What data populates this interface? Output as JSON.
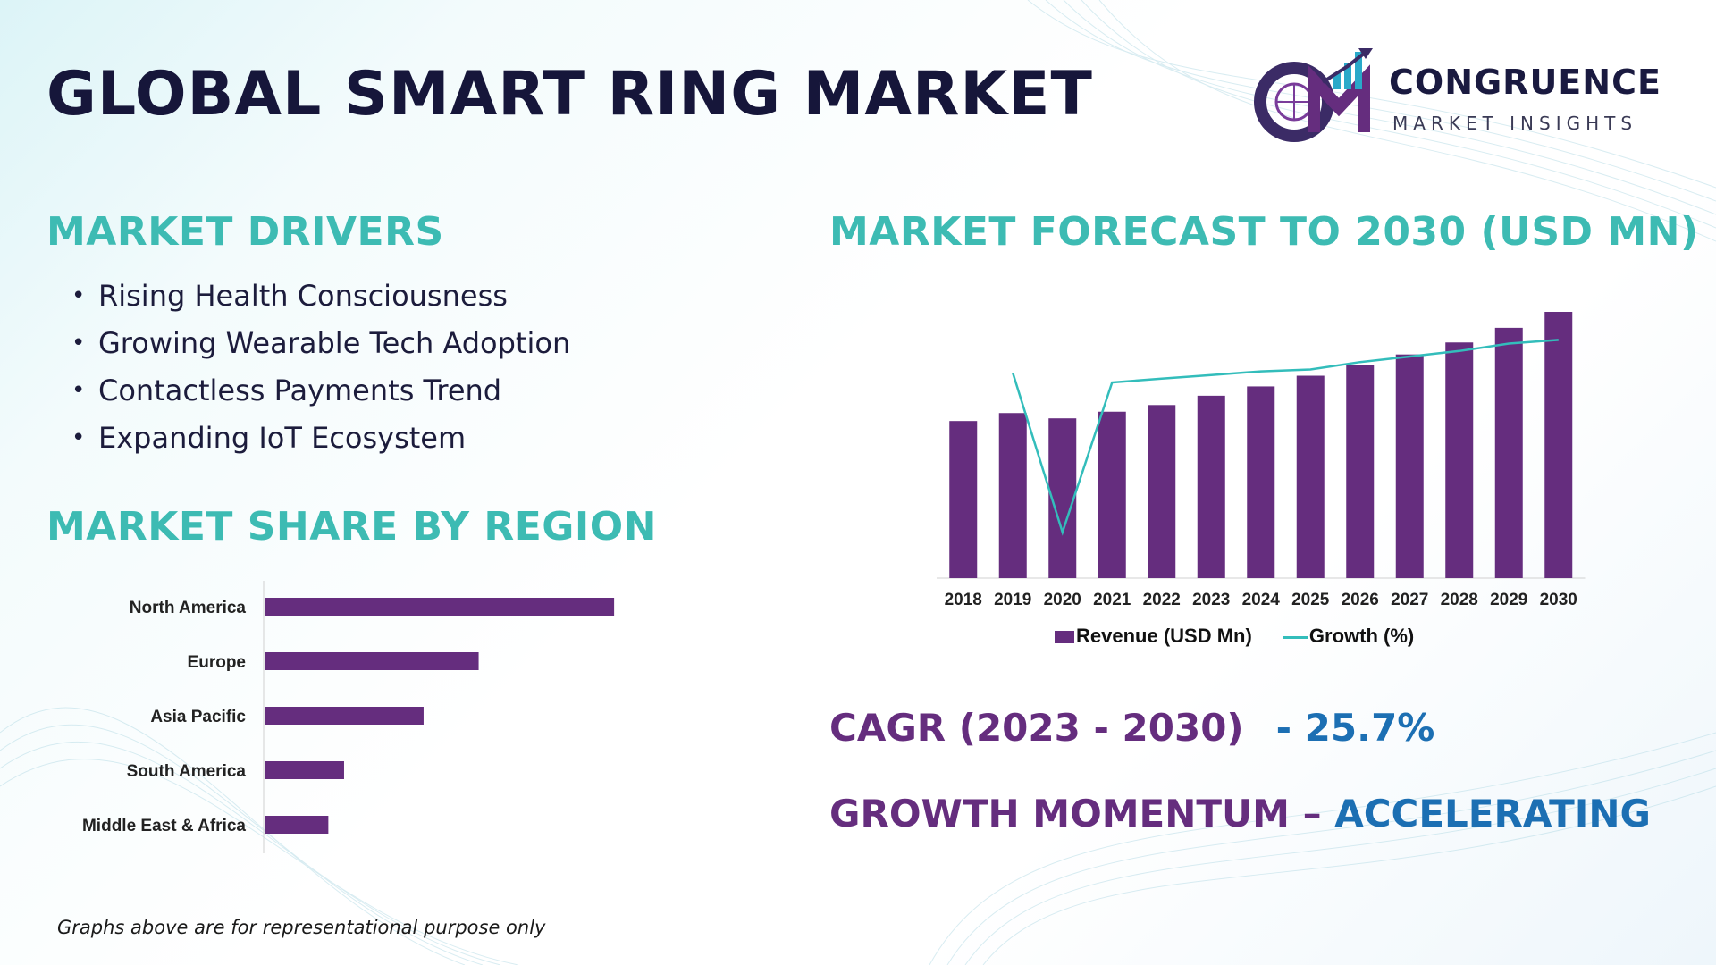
{
  "header": {
    "title": "GLOBAL SMART RING MARKET"
  },
  "logo": {
    "mark_letters": "CM",
    "name": "CONGRUENCE",
    "tagline": "MARKET INSIGHTS",
    "icon": "globe-chart-logo-icon"
  },
  "drivers": {
    "title": "MARKET DRIVERS",
    "items": [
      "Rising Health Consciousness",
      "Growing Wearable Tech Adoption",
      "Contactless Payments Trend",
      "Expanding IoT Ecosystem"
    ]
  },
  "region": {
    "title": "MARKET SHARE BY REGION"
  },
  "forecast": {
    "title": "MARKET FORECAST TO 2030 (USD MN)"
  },
  "cagr": {
    "label": "CAGR (2023 - 2030)",
    "value": "- 25.7%"
  },
  "momentum": {
    "label": "GROWTH MOMENTUM – ",
    "value": "ACCELERATING"
  },
  "footnote": "Graphs above are for representational purpose only",
  "colors": {
    "accent_teal": "#3dbbb3",
    "bar_purple": "#652d7e",
    "line_teal": "#33bdbb",
    "value_blue": "#1c6fb3",
    "title_navy": "#16163a"
  },
  "chart_data": [
    {
      "type": "bar",
      "orientation": "horizontal",
      "categories": [
        "North America",
        "Europe",
        "Asia Pacific",
        "South America",
        "Middle East & Africa"
      ],
      "values": [
        40,
        24.5,
        18.2,
        9.1,
        7.3
      ],
      "xlim": [
        0,
        45
      ],
      "grid": false
    },
    {
      "type": "bar",
      "categories": [
        "2018",
        "2019",
        "2020",
        "2021",
        "2022",
        "2023",
        "2024",
        "2025",
        "2026",
        "2027",
        "2028",
        "2029",
        "2030"
      ],
      "series": [
        {
          "name": "Revenue (USD Mn)",
          "type": "bar",
          "values": [
            59,
            62,
            60,
            62.5,
            65,
            68.5,
            72,
            76,
            80,
            84,
            88.5,
            94,
            100
          ]
        },
        {
          "name": "Growth (%)",
          "type": "line",
          "values": [
            null,
            7.5,
            -1.1,
            7.0,
            7.2,
            7.4,
            7.6,
            7.7,
            8.1,
            8.4,
            8.7,
            9.1,
            9.3
          ]
        }
      ],
      "legend": "bottom",
      "grid": false
    }
  ]
}
